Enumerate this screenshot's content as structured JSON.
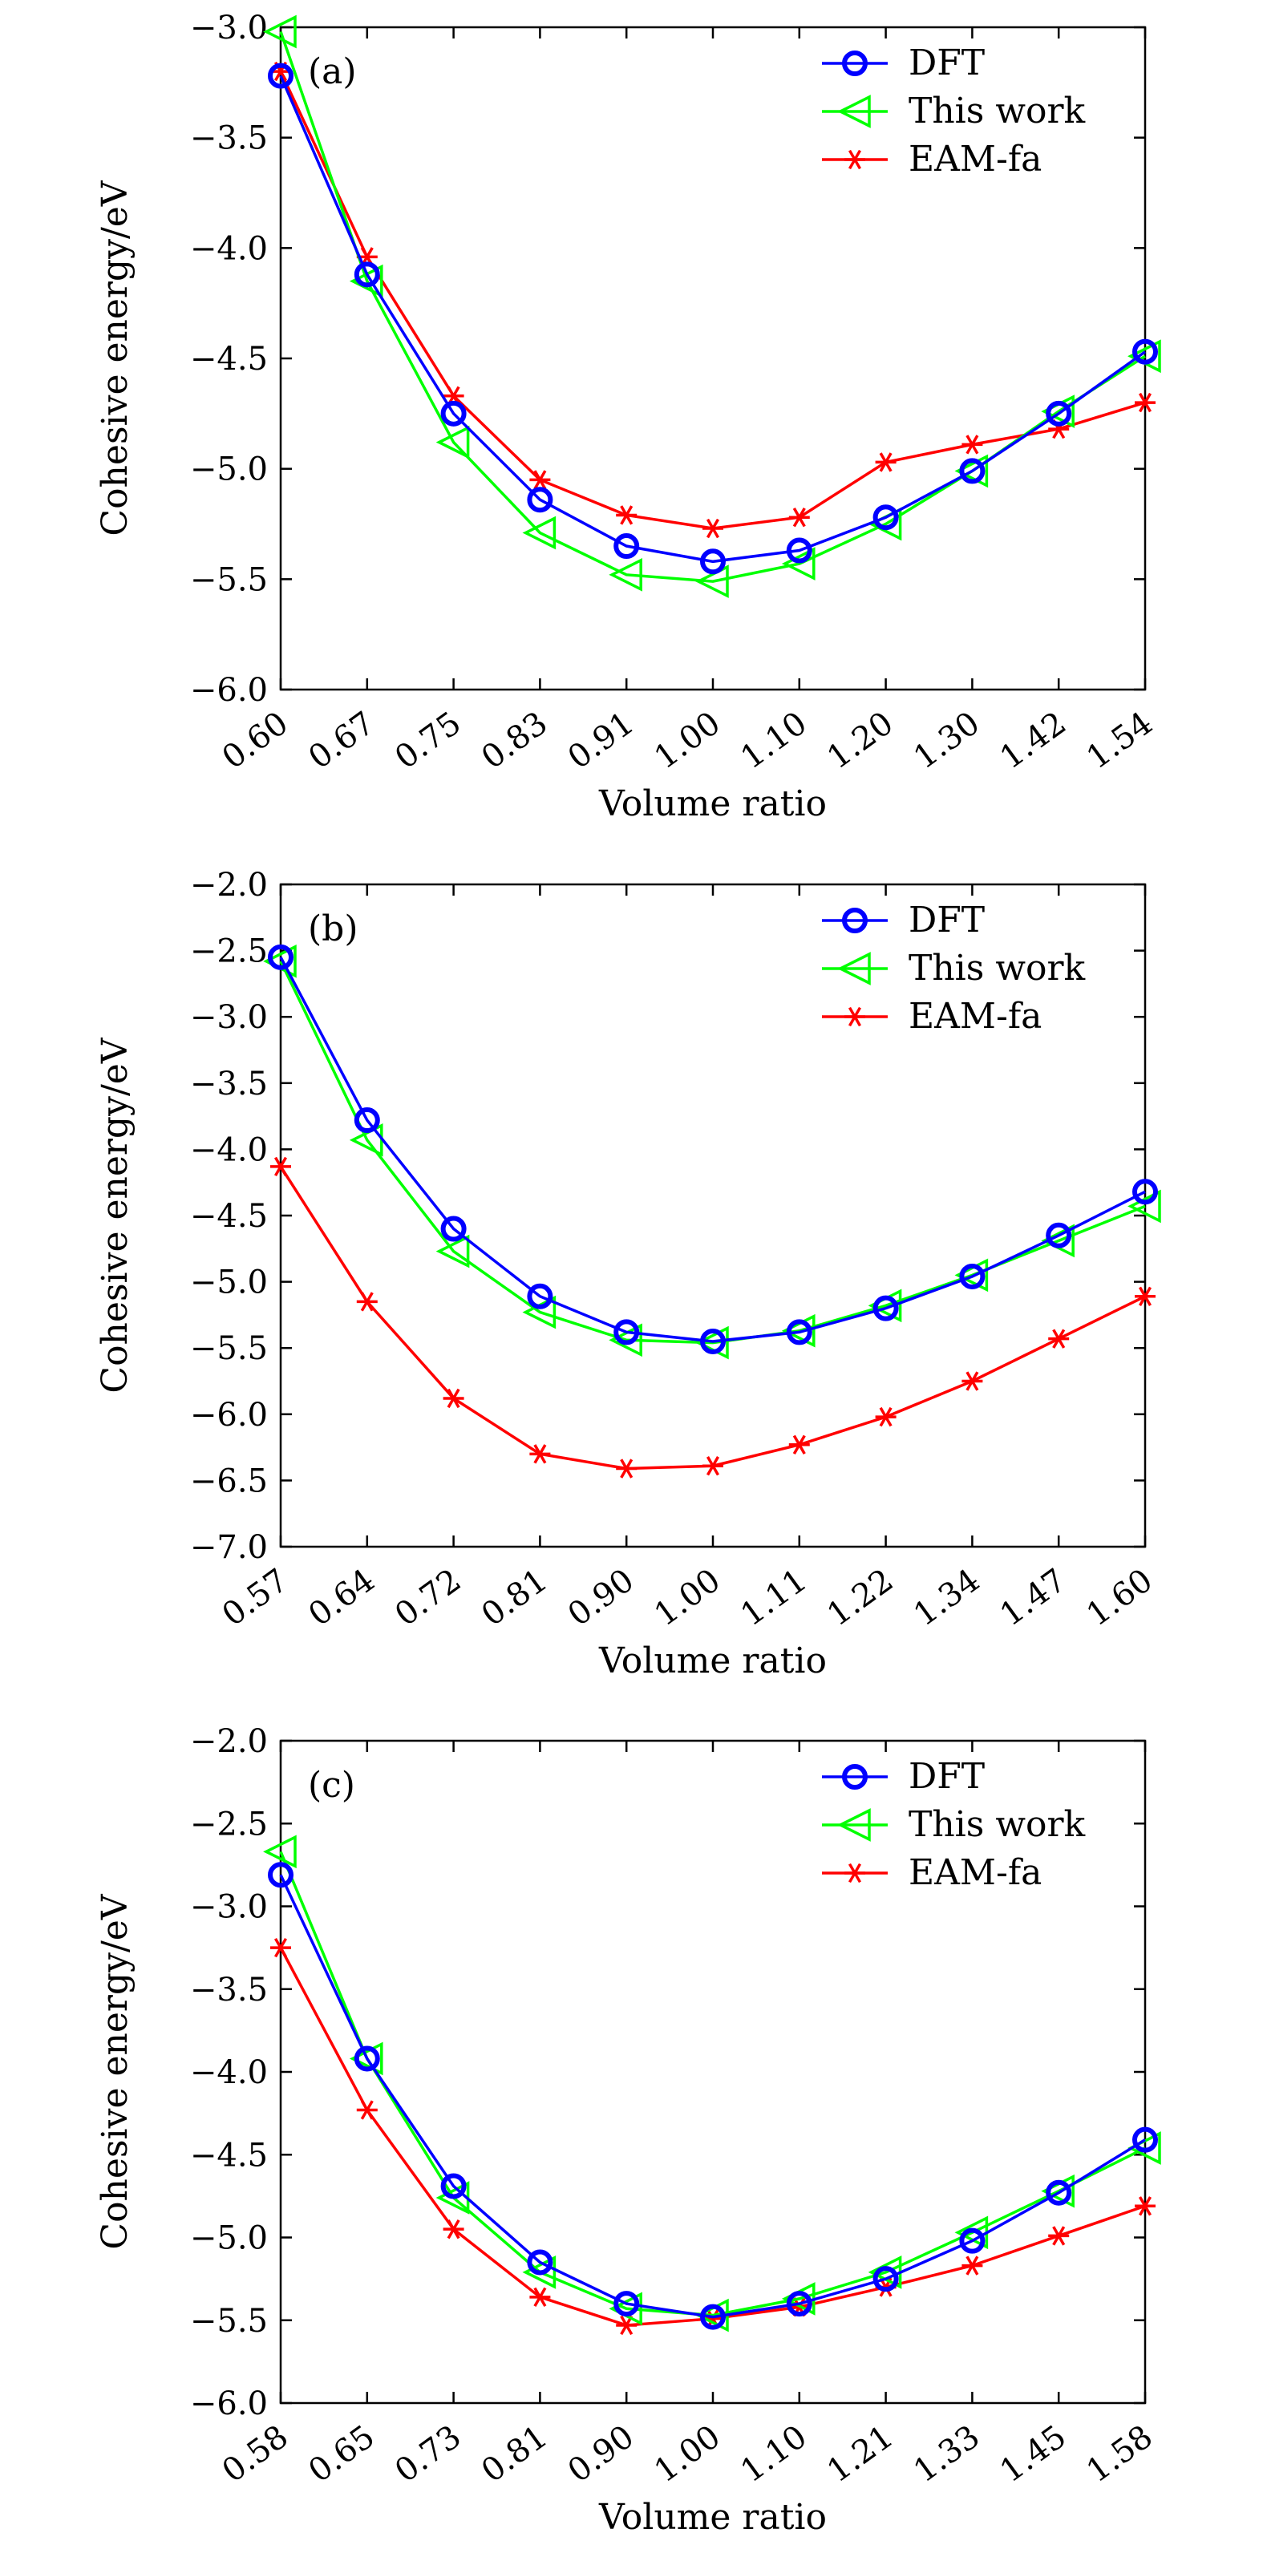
{
  "chart_data": [
    {
      "panel": "(a)",
      "type": "line",
      "xlabel": "Volume ratio",
      "ylabel": "Cohesive energy/eV",
      "categories": [
        "0.60",
        "0.67",
        "0.75",
        "0.83",
        "0.91",
        "1.00",
        "1.10",
        "1.20",
        "1.30",
        "1.42",
        "1.54"
      ],
      "ylim": [
        -6.0,
        -3.0
      ],
      "yticks": [
        -3.0,
        -3.5,
        -4.0,
        -4.5,
        -5.0,
        -5.5,
        -6.0
      ],
      "ytick_labels": [
        "−3.0",
        "−3.5",
        "−4.0",
        "−4.5",
        "−5.0",
        "−5.5",
        "−6.0"
      ],
      "legend_position": "top-right",
      "series": [
        {
          "name": "DFT",
          "color": "#0000ff",
          "marker": "circle",
          "values": [
            -3.22,
            -4.12,
            -4.75,
            -5.14,
            -5.35,
            -5.42,
            -5.37,
            -5.22,
            -5.01,
            -4.75,
            -4.47
          ]
        },
        {
          "name": "This work",
          "color": "#00ff00",
          "marker": "triangle-left",
          "values": [
            -3.02,
            -4.15,
            -4.88,
            -5.29,
            -5.48,
            -5.51,
            -5.43,
            -5.25,
            -5.01,
            -4.74,
            -4.49
          ]
        },
        {
          "name": "EAM-fa",
          "color": "#ff0000",
          "marker": "asterisk",
          "values": [
            -3.2,
            -4.04,
            -4.67,
            -5.05,
            -5.21,
            -5.27,
            -5.22,
            -4.97,
            -4.89,
            -4.82,
            -4.7
          ]
        }
      ]
    },
    {
      "panel": "(b)",
      "type": "line",
      "xlabel": "Volume ratio",
      "ylabel": "Cohesive energy/eV",
      "categories": [
        "0.57",
        "0.64",
        "0.72",
        "0.81",
        "0.90",
        "1.00",
        "1.11",
        "1.22",
        "1.34",
        "1.47",
        "1.60"
      ],
      "ylim": [
        -7.0,
        -2.0
      ],
      "yticks": [
        -2.0,
        -2.5,
        -3.0,
        -3.5,
        -4.0,
        -4.5,
        -5.0,
        -5.5,
        -6.0,
        -6.5,
        -7.0
      ],
      "ytick_labels": [
        "−2.0",
        "−2.5",
        "−3.0",
        "−3.5",
        "−4.0",
        "−4.5",
        "−5.0",
        "−5.5",
        "−6.0",
        "−6.5",
        "−7.0"
      ],
      "legend_position": "top-right",
      "series": [
        {
          "name": "DFT",
          "color": "#0000ff",
          "marker": "circle",
          "values": [
            -2.55,
            -3.78,
            -4.6,
            -5.11,
            -5.38,
            -5.45,
            -5.38,
            -5.2,
            -4.96,
            -4.65,
            -4.32
          ]
        },
        {
          "name": "This work",
          "color": "#00ff00",
          "marker": "triangle-left",
          "values": [
            -2.58,
            -3.93,
            -4.77,
            -5.23,
            -5.44,
            -5.46,
            -5.37,
            -5.18,
            -4.95,
            -4.69,
            -4.43
          ]
        },
        {
          "name": "EAM-fa",
          "color": "#ff0000",
          "marker": "asterisk",
          "values": [
            -4.13,
            -5.15,
            -5.88,
            -6.3,
            -6.41,
            -6.39,
            -6.23,
            -6.02,
            -5.75,
            -5.43,
            -5.11
          ]
        }
      ]
    },
    {
      "panel": "(c)",
      "type": "line",
      "xlabel": "Volume ratio",
      "ylabel": "Cohesive energy/eV",
      "categories": [
        "0.58",
        "0.65",
        "0.73",
        "0.81",
        "0.90",
        "1.00",
        "1.10",
        "1.21",
        "1.33",
        "1.45",
        "1.58"
      ],
      "ylim": [
        -6.0,
        -2.0
      ],
      "yticks": [
        -2.0,
        -2.5,
        -3.0,
        -3.5,
        -4.0,
        -4.5,
        -5.0,
        -5.5,
        -6.0
      ],
      "ytick_labels": [
        "−2.0",
        "−2.5",
        "−3.0",
        "−3.5",
        "−4.0",
        "−4.5",
        "−5.0",
        "−5.5",
        "−6.0"
      ],
      "legend_position": "top-right",
      "series": [
        {
          "name": "DFT",
          "color": "#0000ff",
          "marker": "circle",
          "values": [
            -2.81,
            -3.92,
            -4.69,
            -5.15,
            -5.4,
            -5.48,
            -5.4,
            -5.25,
            -5.02,
            -4.73,
            -4.41
          ]
        },
        {
          "name": "This work",
          "color": "#00ff00",
          "marker": "triangle-left",
          "values": [
            -2.67,
            -3.92,
            -4.76,
            -5.21,
            -5.43,
            -5.47,
            -5.37,
            -5.21,
            -4.97,
            -4.72,
            -4.46
          ]
        },
        {
          "name": "EAM-fa",
          "color": "#ff0000",
          "marker": "asterisk",
          "values": [
            -3.25,
            -4.23,
            -4.95,
            -5.36,
            -5.53,
            -5.49,
            -5.42,
            -5.3,
            -5.17,
            -4.99,
            -4.81
          ]
        }
      ]
    }
  ]
}
